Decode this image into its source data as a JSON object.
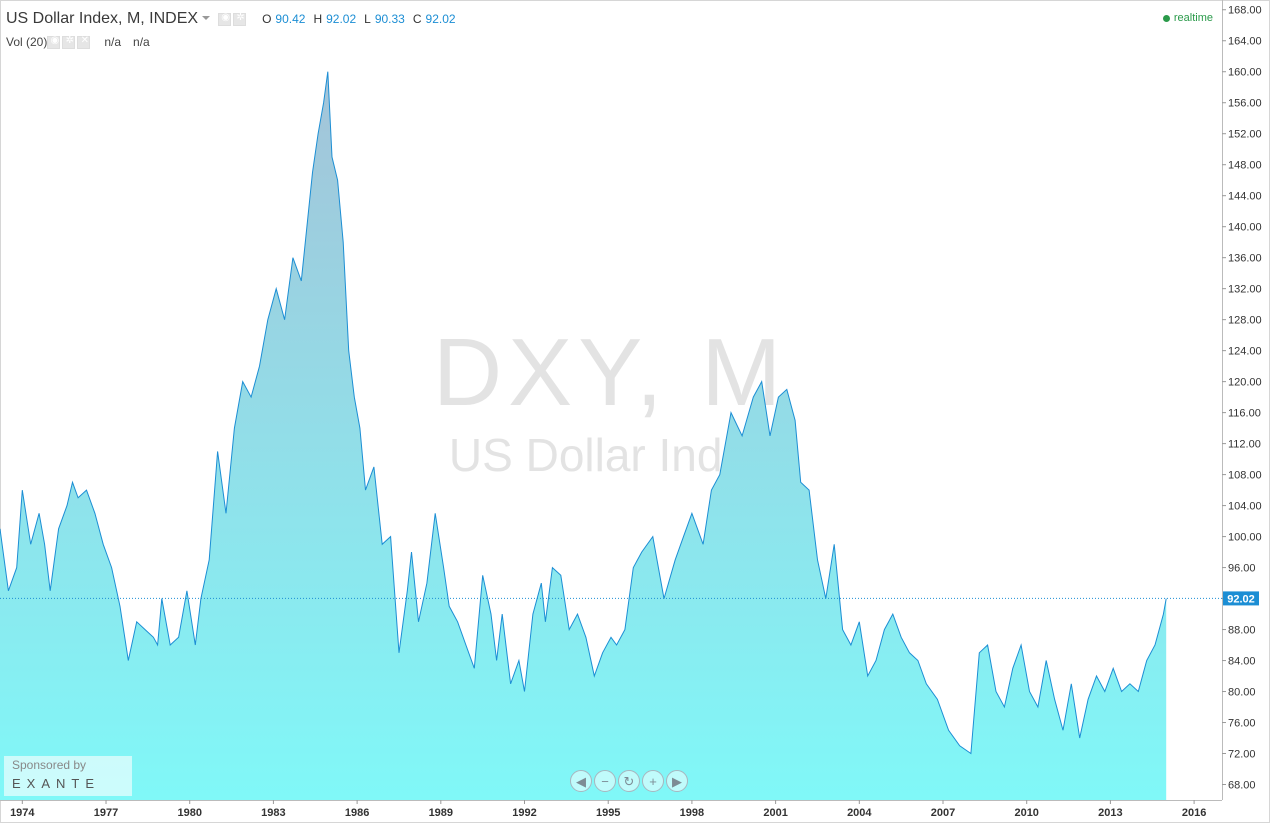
{
  "legend": {
    "title": "US Dollar Index, M, INDEX",
    "ohlc": [
      {
        "k": "O",
        "v": "90.42"
      },
      {
        "k": "H",
        "v": "92.02"
      },
      {
        "k": "L",
        "v": "90.33"
      },
      {
        "k": "C",
        "v": "92.02"
      }
    ],
    "vol_label": "Vol (20)",
    "vol_values": [
      "n/a",
      "n/a"
    ]
  },
  "status": {
    "realtime": "realtime",
    "color": "#2a9a4a"
  },
  "watermark": {
    "symbol": "DXY, M",
    "name": "US Dollar Index"
  },
  "sponsor": {
    "by": "Sponsored by",
    "brand": "EXANTE"
  },
  "nav_buttons": [
    {
      "name": "scroll-left-icon",
      "glyph": "◀"
    },
    {
      "name": "zoom-out-icon",
      "glyph": "−"
    },
    {
      "name": "reset-icon",
      "glyph": "↻"
    },
    {
      "name": "zoom-in-icon",
      "glyph": "+"
    },
    {
      "name": "scroll-right-icon",
      "glyph": "▶"
    }
  ],
  "colors": {
    "line": "#1c8ed4",
    "fill_top": "#a4c3d8",
    "fill_bottom": "#80f8f8",
    "last_price_bg": "#1c8ed4"
  },
  "chart_data": {
    "type": "area",
    "title": "US Dollar Index, M, INDEX",
    "ylim": [
      66,
      169
    ],
    "xlim": [
      1973.2,
      2017.0
    ],
    "y_ticks": [
      "68.00",
      "72.00",
      "76.00",
      "80.00",
      "84.00",
      "88.00",
      "92.00",
      "96.00",
      "100.00",
      "104.00",
      "108.00",
      "112.00",
      "116.00",
      "120.00",
      "124.00",
      "128.00",
      "132.00",
      "136.00",
      "140.00",
      "144.00",
      "148.00",
      "152.00",
      "156.00",
      "160.00",
      "164.00",
      "168.00"
    ],
    "x_ticks": [
      "1974",
      "1977",
      "1980",
      "1983",
      "1986",
      "1989",
      "1992",
      "1995",
      "1998",
      "2001",
      "2004",
      "2007",
      "2010",
      "2013",
      "2016"
    ],
    "last_price": 92.02,
    "last_price_label": "92.02",
    "series": [
      {
        "x": [
          1973.2,
          1973.5,
          1973.8,
          1974.0,
          1974.3,
          1974.6,
          1974.8,
          1975.0,
          1975.3,
          1975.6,
          1975.8,
          1976.0,
          1976.3,
          1976.6,
          1976.9,
          1977.2,
          1977.5,
          1977.8,
          1978.1,
          1978.4,
          1978.7,
          1978.85,
          1979.0,
          1979.3,
          1979.6,
          1979.9,
          1980.2,
          1980.4,
          1980.7,
          1981.0,
          1981.3,
          1981.6,
          1981.9,
          1982.2,
          1982.5,
          1982.8,
          1983.1,
          1983.4,
          1983.7,
          1984.0,
          1984.2,
          1984.4,
          1984.6,
          1984.8,
          1984.95,
          1985.1,
          1985.3,
          1985.5,
          1985.7,
          1985.9,
          1986.1,
          1986.3,
          1986.6,
          1986.9,
          1987.2,
          1987.5,
          1987.8,
          1987.95,
          1988.2,
          1988.5,
          1988.8,
          1989.1,
          1989.3,
          1989.6,
          1989.9,
          1990.2,
          1990.5,
          1990.8,
          1991.0,
          1991.2,
          1991.5,
          1991.8,
          1992.0,
          1992.3,
          1992.6,
          1992.75,
          1993.0,
          1993.3,
          1993.6,
          1993.9,
          1994.2,
          1994.5,
          1994.8,
          1995.1,
          1995.3,
          1995.6,
          1995.9,
          1996.2,
          1996.6,
          1997.0,
          1997.4,
          1997.7,
          1998.0,
          1998.4,
          1998.7,
          1999.0,
          1999.4,
          1999.8,
          2000.2,
          2000.5,
          2000.8,
          2001.1,
          2001.4,
          2001.7,
          2001.9,
          2002.2,
          2002.5,
          2002.8,
          2003.1,
          2003.4,
          2003.7,
          2004.0,
          2004.3,
          2004.6,
          2004.9,
          2005.2,
          2005.5,
          2005.8,
          2006.1,
          2006.4,
          2006.8,
          2007.2,
          2007.6,
          2008.0,
          2008.3,
          2008.6,
          2008.9,
          2009.2,
          2009.5,
          2009.8,
          2010.1,
          2010.4,
          2010.7,
          2011.0,
          2011.3,
          2011.6,
          2011.9,
          2012.2,
          2012.5,
          2012.8,
          2013.1,
          2013.4,
          2013.7,
          2014.0,
          2014.3,
          2014.6,
          2014.9,
          2015.0
        ],
        "y": [
          101,
          93,
          96,
          106,
          99,
          103,
          99,
          93,
          101,
          104,
          107,
          105,
          106,
          103,
          99,
          96,
          91,
          84,
          89,
          88,
          87,
          86,
          92,
          86,
          87,
          93,
          86,
          92,
          97,
          111,
          103,
          114,
          120,
          118,
          122,
          128,
          132,
          128,
          136,
          133,
          140,
          147,
          152,
          156,
          160,
          149,
          146,
          138,
          124,
          118,
          114,
          106,
          109,
          99,
          100,
          85,
          93,
          98,
          89,
          94,
          103,
          96,
          91,
          89,
          86,
          83,
          95,
          90,
          84,
          90,
          81,
          84,
          80,
          90,
          94,
          89,
          96,
          95,
          88,
          90,
          87,
          82,
          85,
          87,
          86,
          88,
          96,
          98,
          100,
          92,
          97,
          100,
          103,
          99,
          106,
          108,
          116,
          113,
          118,
          120,
          113,
          118,
          119,
          115,
          107,
          106,
          97,
          92,
          99,
          88,
          86,
          89,
          82,
          84,
          88,
          90,
          87,
          85,
          84,
          81,
          79,
          75,
          73,
          72,
          85,
          86,
          80,
          78,
          83,
          86,
          80,
          78,
          84,
          79,
          75,
          81,
          74,
          79,
          82,
          80,
          83,
          80,
          81,
          80,
          84,
          86,
          90,
          92
        ]
      }
    ]
  }
}
